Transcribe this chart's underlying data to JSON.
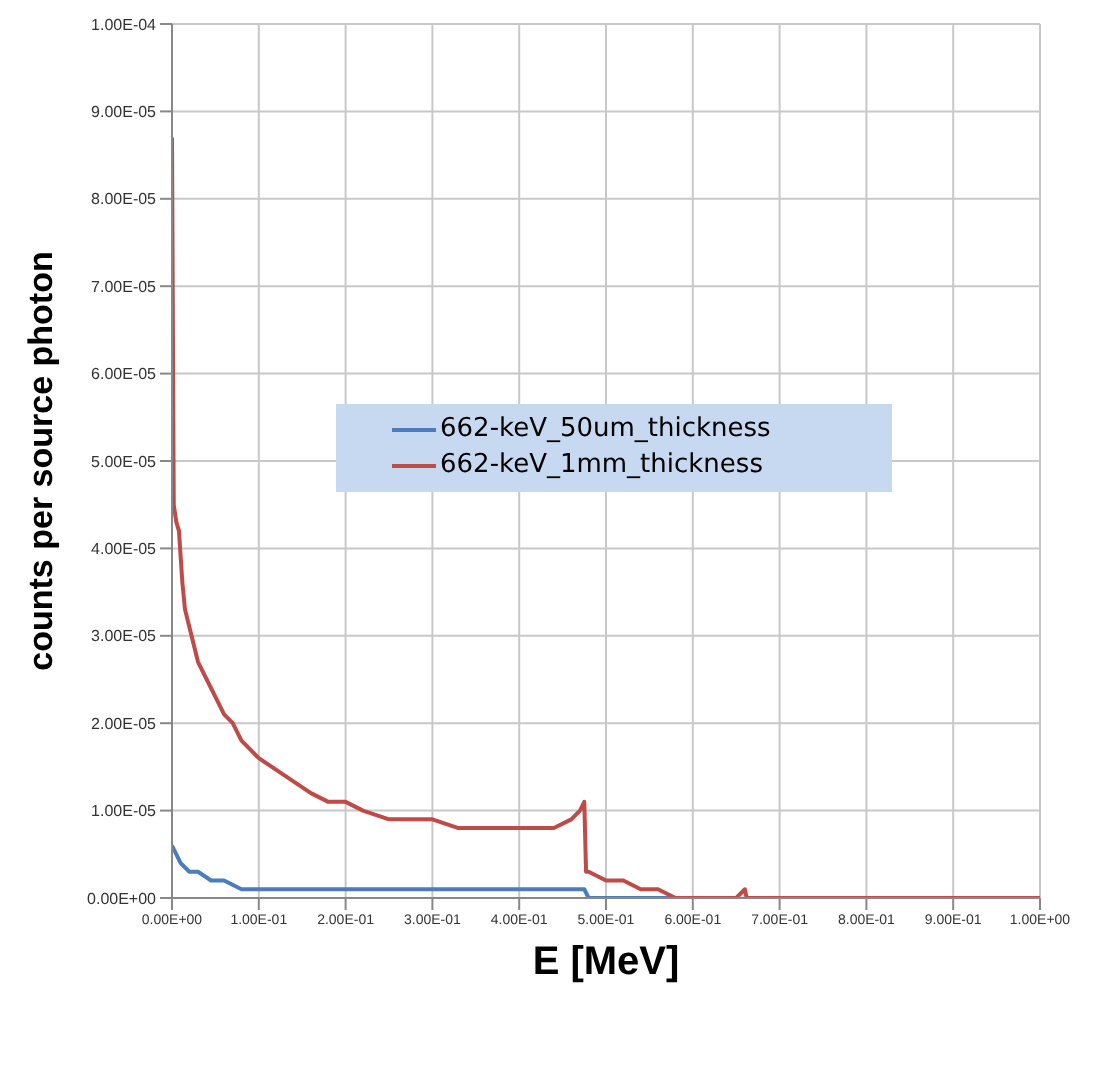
{
  "chart_data": {
    "type": "line",
    "xlabel": "E [MeV]",
    "ylabel": "counts per source photon",
    "xlim": [
      0,
      1
    ],
    "ylim": [
      0,
      0.0001
    ],
    "xticks": [
      {
        "value": 0,
        "label": "0.00E+00"
      },
      {
        "value": 0.1,
        "label": "1.00E-01"
      },
      {
        "value": 0.2,
        "label": "2.00E-01"
      },
      {
        "value": 0.3,
        "label": "3.00E-01"
      },
      {
        "value": 0.4,
        "label": "4.00E-01"
      },
      {
        "value": 0.5,
        "label": "5.00E-01"
      },
      {
        "value": 0.6,
        "label": "6.00E-01"
      },
      {
        "value": 0.7,
        "label": "7.00E-01"
      },
      {
        "value": 0.8,
        "label": "8.00E-01"
      },
      {
        "value": 0.9,
        "label": "9.00E-01"
      },
      {
        "value": 1,
        "label": "1.00E+00"
      }
    ],
    "yticks": [
      {
        "value": 0,
        "label": "0.00E+00"
      },
      {
        "value": 1e-05,
        "label": "1.00E-05"
      },
      {
        "value": 2e-05,
        "label": "2.00E-05"
      },
      {
        "value": 3e-05,
        "label": "3.00E-05"
      },
      {
        "value": 4e-05,
        "label": "4.00E-05"
      },
      {
        "value": 5e-05,
        "label": "5.00E-05"
      },
      {
        "value": 6e-05,
        "label": "6.00E-05"
      },
      {
        "value": 7e-05,
        "label": "7.00E-05"
      },
      {
        "value": 8e-05,
        "label": "8.00E-05"
      },
      {
        "value": 9e-05,
        "label": "9.00E-05"
      },
      {
        "value": 0.0001,
        "label": "1.00E-04"
      }
    ],
    "grid": true,
    "legend": "center",
    "marker": "none",
    "line_style": "solid",
    "series": [
      {
        "name": "662-keV_50um_thickness",
        "color": "#4a7ebb",
        "x": [
          0,
          0.005,
          0.01,
          0.02,
          0.03,
          0.045,
          0.06,
          0.08,
          0.1,
          0.15,
          0.2,
          0.3,
          0.4,
          0.47,
          0.475,
          0.48,
          0.52,
          0.56,
          0.6
        ],
        "values": [
          6e-06,
          5e-06,
          4e-06,
          3e-06,
          3e-06,
          2e-06,
          2e-06,
          1e-06,
          1e-06,
          1e-06,
          1e-06,
          1e-06,
          1e-06,
          1e-06,
          1e-06,
          0,
          0,
          0,
          0
        ]
      },
      {
        "name": "662-keV_1mm_thickness",
        "color": "#be4b48",
        "x": [
          0,
          0.002,
          0.005,
          0.008,
          0.012,
          0.015,
          0.02,
          0.03,
          0.04,
          0.05,
          0.06,
          0.07,
          0.08,
          0.09,
          0.1,
          0.115,
          0.13,
          0.145,
          0.16,
          0.18,
          0.2,
          0.22,
          0.25,
          0.28,
          0.3,
          0.33,
          0.35,
          0.38,
          0.4,
          0.42,
          0.44,
          0.46,
          0.47,
          0.475,
          0.477,
          0.48,
          0.5,
          0.52,
          0.54,
          0.56,
          0.58,
          0.65,
          0.66,
          0.662,
          0.67,
          1
        ],
        "values": [
          8.7e-05,
          4.5e-05,
          4.3e-05,
          4.2e-05,
          3.6e-05,
          3.3e-05,
          3.1e-05,
          2.7e-05,
          2.5e-05,
          2.3e-05,
          2.1e-05,
          2e-05,
          1.8e-05,
          1.7e-05,
          1.6e-05,
          1.5e-05,
          1.4e-05,
          1.3e-05,
          1.2e-05,
          1.1e-05,
          1.1e-05,
          1e-05,
          9e-06,
          9e-06,
          9e-06,
          8e-06,
          8e-06,
          8e-06,
          8e-06,
          8e-06,
          8e-06,
          9e-06,
          1e-05,
          1.1e-05,
          3e-06,
          3e-06,
          2e-06,
          2e-06,
          1e-06,
          1e-06,
          0,
          0,
          1e-06,
          0,
          0,
          0
        ]
      }
    ]
  }
}
